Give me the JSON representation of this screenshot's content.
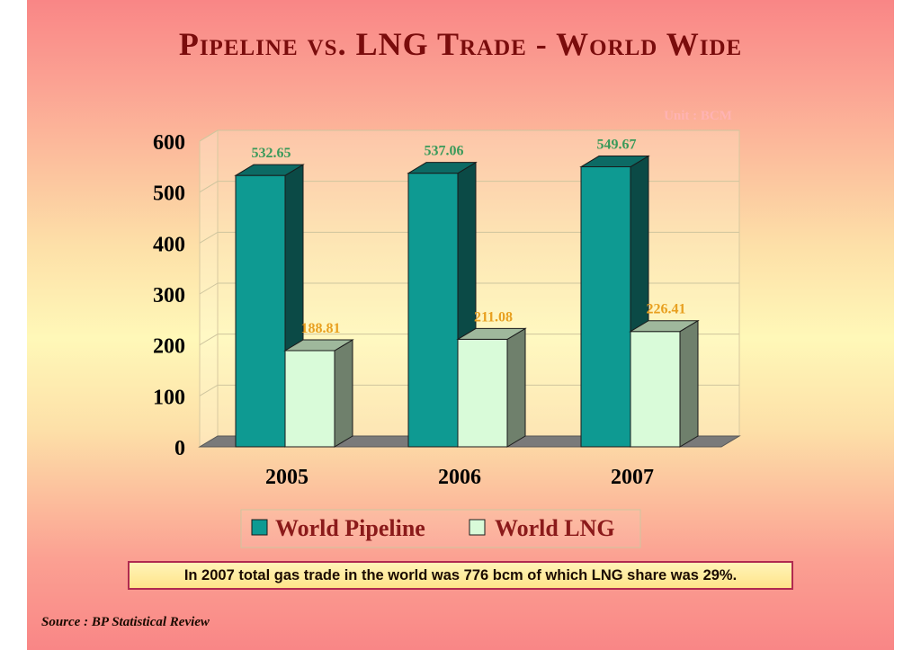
{
  "title": "Pipeline vs. LNG Trade - World Wide",
  "unit_label": "Unit : BCM",
  "note": "In 2007 total gas trade in the world was 776 bcm of which LNG share was 29%.",
  "source": "Source : BP Statistical Review",
  "colors": {
    "pipeline_front": "#0e9a92",
    "pipeline_side": "#0b4a46",
    "pipeline_top": "#0c6a64",
    "lng_front": "#d9fbd9",
    "lng_side": "#6f806c",
    "lng_top": "#9fb89c",
    "pipeline_label": "#3a9a5a",
    "lng_label": "#e8a020",
    "legend_text": "#8b1a1a",
    "unit_text": "#ffb3b3"
  },
  "chart_data": {
    "type": "bar",
    "categories": [
      "2005",
      "2006",
      "2007"
    ],
    "series": [
      {
        "name": "World Pipeline",
        "values": [
          532.65,
          537.06,
          549.67
        ]
      },
      {
        "name": "World LNG",
        "values": [
          188.81,
          211.08,
          226.41
        ]
      }
    ],
    "data_labels": [
      [
        "532.65",
        "537.06",
        "549.67"
      ],
      [
        "188.81",
        "211.08",
        "226.41"
      ]
    ],
    "y_ticks": [
      "0",
      "100",
      "200",
      "300",
      "400",
      "500",
      "600"
    ],
    "ylim": [
      0,
      600
    ],
    "grid": true,
    "legend_position": "bottom",
    "style": "3d-clustered-column"
  }
}
